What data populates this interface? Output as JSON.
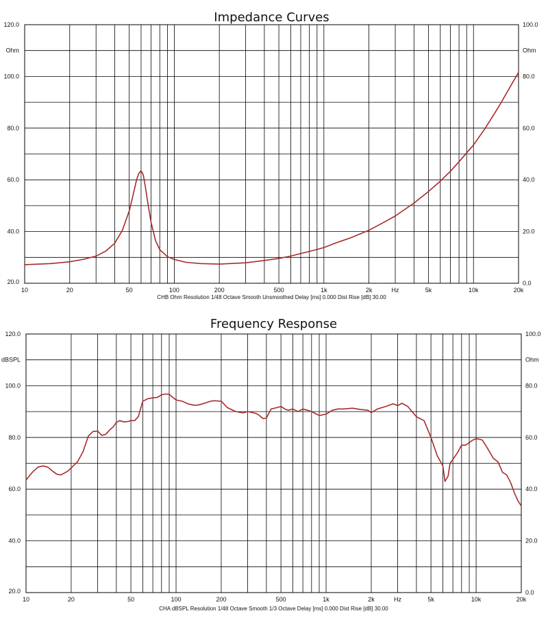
{
  "chart_data": [
    {
      "type": "line",
      "title": "Impedance Curves",
      "ylabel": "Ohm",
      "right_ylabel": "Ohm",
      "xlabel": "Hz",
      "x_scale": "log",
      "xlim": [
        10,
        20000
      ],
      "ylim": [
        20,
        120
      ],
      "right_ylim": [
        0,
        100
      ],
      "y_ticks": [
        "120.0",
        "100.0",
        "80.0",
        "60.0",
        "40.0",
        "20.0"
      ],
      "right_y_ticks": [
        "100.0",
        "80.0",
        "60.0",
        "40.0",
        "20.0",
        "0.0"
      ],
      "x_ticks": [
        "10",
        "20",
        "50",
        "100",
        "200",
        "500",
        "1k",
        "2k",
        "5k",
        "10k",
        "20k"
      ],
      "footer": "CHB Ohm Resolution 1/48 Octave Smooth Unsmoothed Delay [ms] 0.000 Dist Rise [dB] 30.00",
      "grid": true,
      "series": [
        {
          "color": "#a52a2a",
          "x": [
            10,
            15,
            20,
            25,
            30,
            35,
            40,
            45,
            50,
            53,
            56,
            58,
            60,
            62,
            64,
            67,
            70,
            75,
            80,
            90,
            100,
            120,
            150,
            200,
            300,
            400,
            500,
            600,
            700,
            800,
            1000,
            1200,
            1500,
            2000,
            2500,
            3000,
            4000,
            5000,
            6000,
            7000,
            8000,
            10000,
            12000,
            15000,
            18000,
            20000
          ],
          "values": [
            27.2,
            27.6,
            28.3,
            29.3,
            30.5,
            32.5,
            35.5,
            40.5,
            48,
            54,
            60,
            62.5,
            63.5,
            62,
            57.5,
            50,
            43.5,
            36.5,
            33,
            30.3,
            29.2,
            28.1,
            27.6,
            27.4,
            27.9,
            28.8,
            29.6,
            30.5,
            31.5,
            32.3,
            33.8,
            35.6,
            37.5,
            40.5,
            43.5,
            46,
            51,
            55.5,
            59.5,
            63.3,
            67,
            73.5,
            80,
            89,
            97,
            101.5
          ]
        }
      ]
    },
    {
      "type": "line",
      "title": "Frequency Response",
      "ylabel": "dBSPL",
      "right_ylabel": "Ohm",
      "xlabel": "Hz",
      "x_scale": "log",
      "xlim": [
        10,
        20000
      ],
      "ylim": [
        20,
        120
      ],
      "right_ylim": [
        0,
        100
      ],
      "y_ticks": [
        "120.0",
        "100.0",
        "80.0",
        "60.0",
        "40.0",
        "20.0"
      ],
      "right_y_ticks": [
        "100.0",
        "80.0",
        "60.0",
        "40.0",
        "20.0",
        "0.0"
      ],
      "x_ticks": [
        "10",
        "20",
        "50",
        "100",
        "200",
        "500",
        "1k",
        "2k",
        "5k",
        "10k",
        "20k"
      ],
      "footer": "CHA dBSPL Resolution 1/48 Octave Smooth 1/3 Octave Delay [ms] 0.000 Dist Rise [dB] 30.00",
      "grid": true,
      "series": [
        {
          "color": "#a52a2a",
          "x": [
            10,
            11,
            12,
            13,
            14,
            15,
            16,
            17,
            18,
            19,
            20,
            22,
            24,
            26,
            28,
            30,
            32,
            34,
            36,
            38,
            40,
            42,
            45,
            48,
            50,
            53,
            56,
            58,
            60,
            65,
            70,
            75,
            80,
            85,
            90,
            95,
            100,
            110,
            120,
            130,
            140,
            150,
            160,
            170,
            180,
            200,
            220,
            250,
            280,
            300,
            330,
            350,
            380,
            400,
            430,
            470,
            500,
            530,
            560,
            600,
            650,
            700,
            750,
            800,
            900,
            1000,
            1100,
            1200,
            1300,
            1500,
            1700,
            1900,
            2000,
            2200,
            2500,
            2800,
            3000,
            3200,
            3500,
            4000,
            4500,
            5000,
            5500,
            6000,
            6200,
            6500,
            6700,
            7000,
            7500,
            8000,
            8500,
            9000,
            9500,
            10000,
            10500,
            11000,
            12000,
            13000,
            14000,
            15000,
            16000,
            17000,
            18000,
            19000,
            20000
          ],
          "values": [
            63.5,
            66.5,
            68.5,
            69,
            68.5,
            67,
            65.8,
            65.5,
            66.2,
            67,
            68.2,
            70.5,
            74.5,
            80.5,
            82.3,
            82.5,
            80.8,
            81.2,
            82.8,
            84,
            85.8,
            86.5,
            86,
            86.2,
            86.5,
            86.5,
            88,
            91,
            94,
            95,
            95.3,
            95.5,
            96.5,
            96.8,
            96.7,
            95.5,
            94.5,
            94,
            93,
            92.5,
            92.5,
            93,
            93.5,
            94,
            94.2,
            94,
            91.5,
            90,
            89.5,
            90,
            89.5,
            89,
            87.3,
            87.5,
            91,
            91.5,
            92,
            91,
            90.5,
            91,
            90,
            91,
            90.5,
            90,
            88.5,
            89,
            90.5,
            91,
            91,
            91.3,
            90.8,
            90.5,
            89.6,
            91,
            92,
            93,
            92.3,
            93.2,
            92,
            88,
            86.5,
            80,
            73,
            69,
            63,
            65,
            70,
            71.5,
            74,
            77,
            77,
            78,
            79,
            79.5,
            79.3,
            79,
            75.5,
            72,
            70.5,
            66.5,
            65.5,
            62.5,
            58.5,
            55.5,
            53.5
          ]
        }
      ]
    }
  ]
}
